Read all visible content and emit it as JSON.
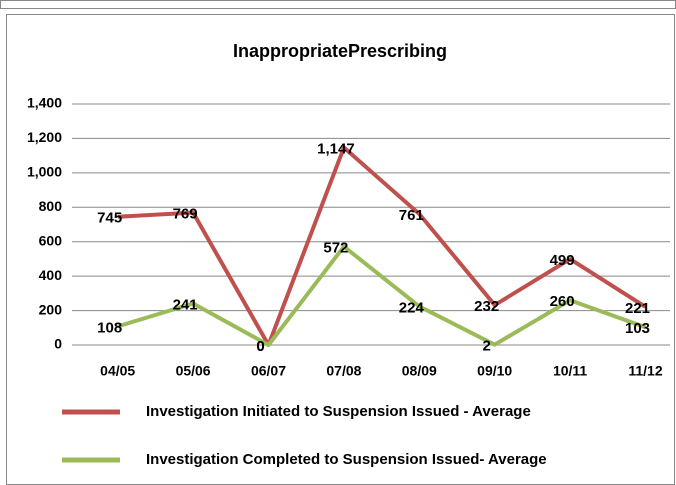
{
  "chart_data": {
    "type": "line",
    "title": "InappropriatePrescribing",
    "categories": [
      "04/05",
      "05/06",
      "06/07",
      "07/08",
      "08/09",
      "09/10",
      "10/11",
      "11/12"
    ],
    "series": [
      {
        "name": "Investigation Initiated to Suspension Issued - Average",
        "color": "#c0504d",
        "values": [
          745,
          769,
          0,
          1147,
          761,
          232,
          499,
          221
        ],
        "value_labels": [
          "745",
          "769",
          "0",
          "1,147",
          "761",
          "232",
          "499",
          "221"
        ]
      },
      {
        "name": "Investigation Completed to Suspension Issued- Average",
        "color": "#9bbb59",
        "values": [
          108,
          241,
          0,
          572,
          224,
          2,
          260,
          103
        ],
        "value_labels": [
          "108",
          "241",
          "0",
          "572",
          "224",
          "2",
          "260",
          "103"
        ]
      }
    ],
    "ylim": [
      0,
      1400
    ],
    "yticks": [
      0,
      200,
      400,
      600,
      800,
      {
        "value": 1000,
        "label": "1,000"
      },
      {
        "value": 1200,
        "label": "1,200"
      },
      {
        "value": 1400,
        "label": "1,400"
      }
    ],
    "grid": true
  }
}
